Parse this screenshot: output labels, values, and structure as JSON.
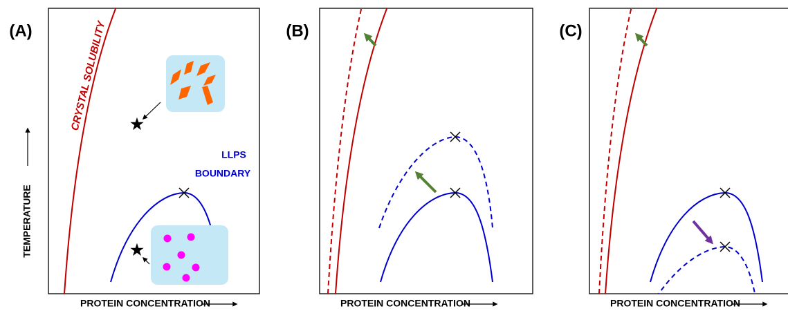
{
  "panels": [
    {
      "label": "(A)",
      "x_axis_label": "PROTEIN CONCENTRATION",
      "y_axis_label": "TEMPERATURE",
      "annotations": [
        "CRYSTAL SOLUBILITY",
        "LLPS",
        "BOUNDARY"
      ]
    },
    {
      "label": "(B)",
      "x_axis_label": "PROTEIN CONCENTRATION"
    },
    {
      "label": "(C)",
      "x_axis_label": "PROTEIN CONCENTRATION"
    }
  ]
}
